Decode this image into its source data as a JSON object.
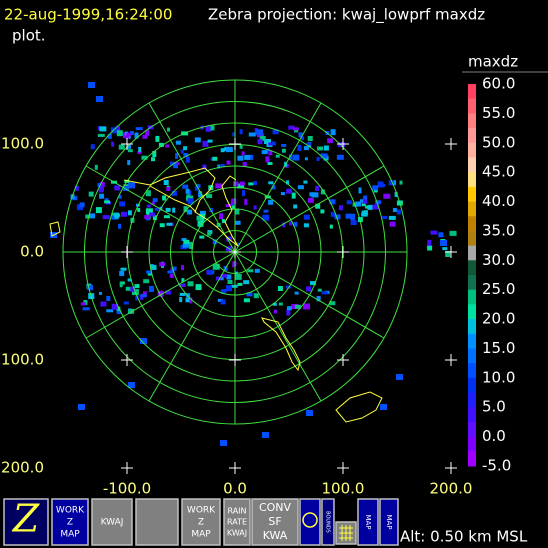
{
  "header": {
    "timestamp": "22-aug-1999,16:24:00",
    "title": "Zebra projection: kwaj_lowprf maxdz",
    "title_cont": "plot."
  },
  "colorbar": {
    "title": "maxdz",
    "labels": [
      "60.0",
      "55.0",
      "50.0",
      "45.0",
      "40.0",
      "35.0",
      "30.0",
      "25.0",
      "20.0",
      "15.0",
      "10.0",
      "5.0",
      "0.0",
      "-5.0"
    ],
    "colors": [
      "#ff4060",
      "#ff6070",
      "#ff8080",
      "#ff9898",
      "#ffb0a0",
      "#ffd0b0",
      "#ffe080",
      "#ffc800",
      "#e0a800",
      "#c08000",
      "#b08010",
      "#a8a8a8",
      "#105838",
      "#107050",
      "#00c080",
      "#00e0a0",
      "#00c0e0",
      "#0090ff",
      "#0070ff",
      "#0050ff",
      "#0030f0",
      "#2020ff",
      "#4010ff",
      "#6010ff",
      "#8000ff",
      "#a000ff"
    ]
  },
  "axes": {
    "x_labels": [
      "-100.0",
      "0.0",
      "100.0",
      "200.0"
    ],
    "y_labels": [
      "100.0",
      "0.0",
      "100.0",
      "200.0"
    ]
  },
  "altitude": "Alt: 0.50 km MSL",
  "toolbar": [
    {
      "lines": [
        "Z"
      ]
    },
    {
      "lines": [
        "WORK",
        "Z",
        "MAP"
      ]
    },
    {
      "lines": [
        "KWAJ"
      ]
    },
    {
      "lines": [
        ""
      ]
    },
    {
      "lines": [
        "WORK",
        "Z",
        "MAP"
      ]
    },
    {
      "lines": [
        "RAIN",
        "RATE",
        "KWAJ"
      ]
    },
    {
      "lines": [
        "CONV",
        "SF",
        "KWA"
      ]
    },
    {
      "lines": [
        "BOUNDS"
      ]
    },
    {
      "lines": [
        "MAP"
      ]
    },
    {
      "lines": [
        "MAP"
      ]
    }
  ]
}
